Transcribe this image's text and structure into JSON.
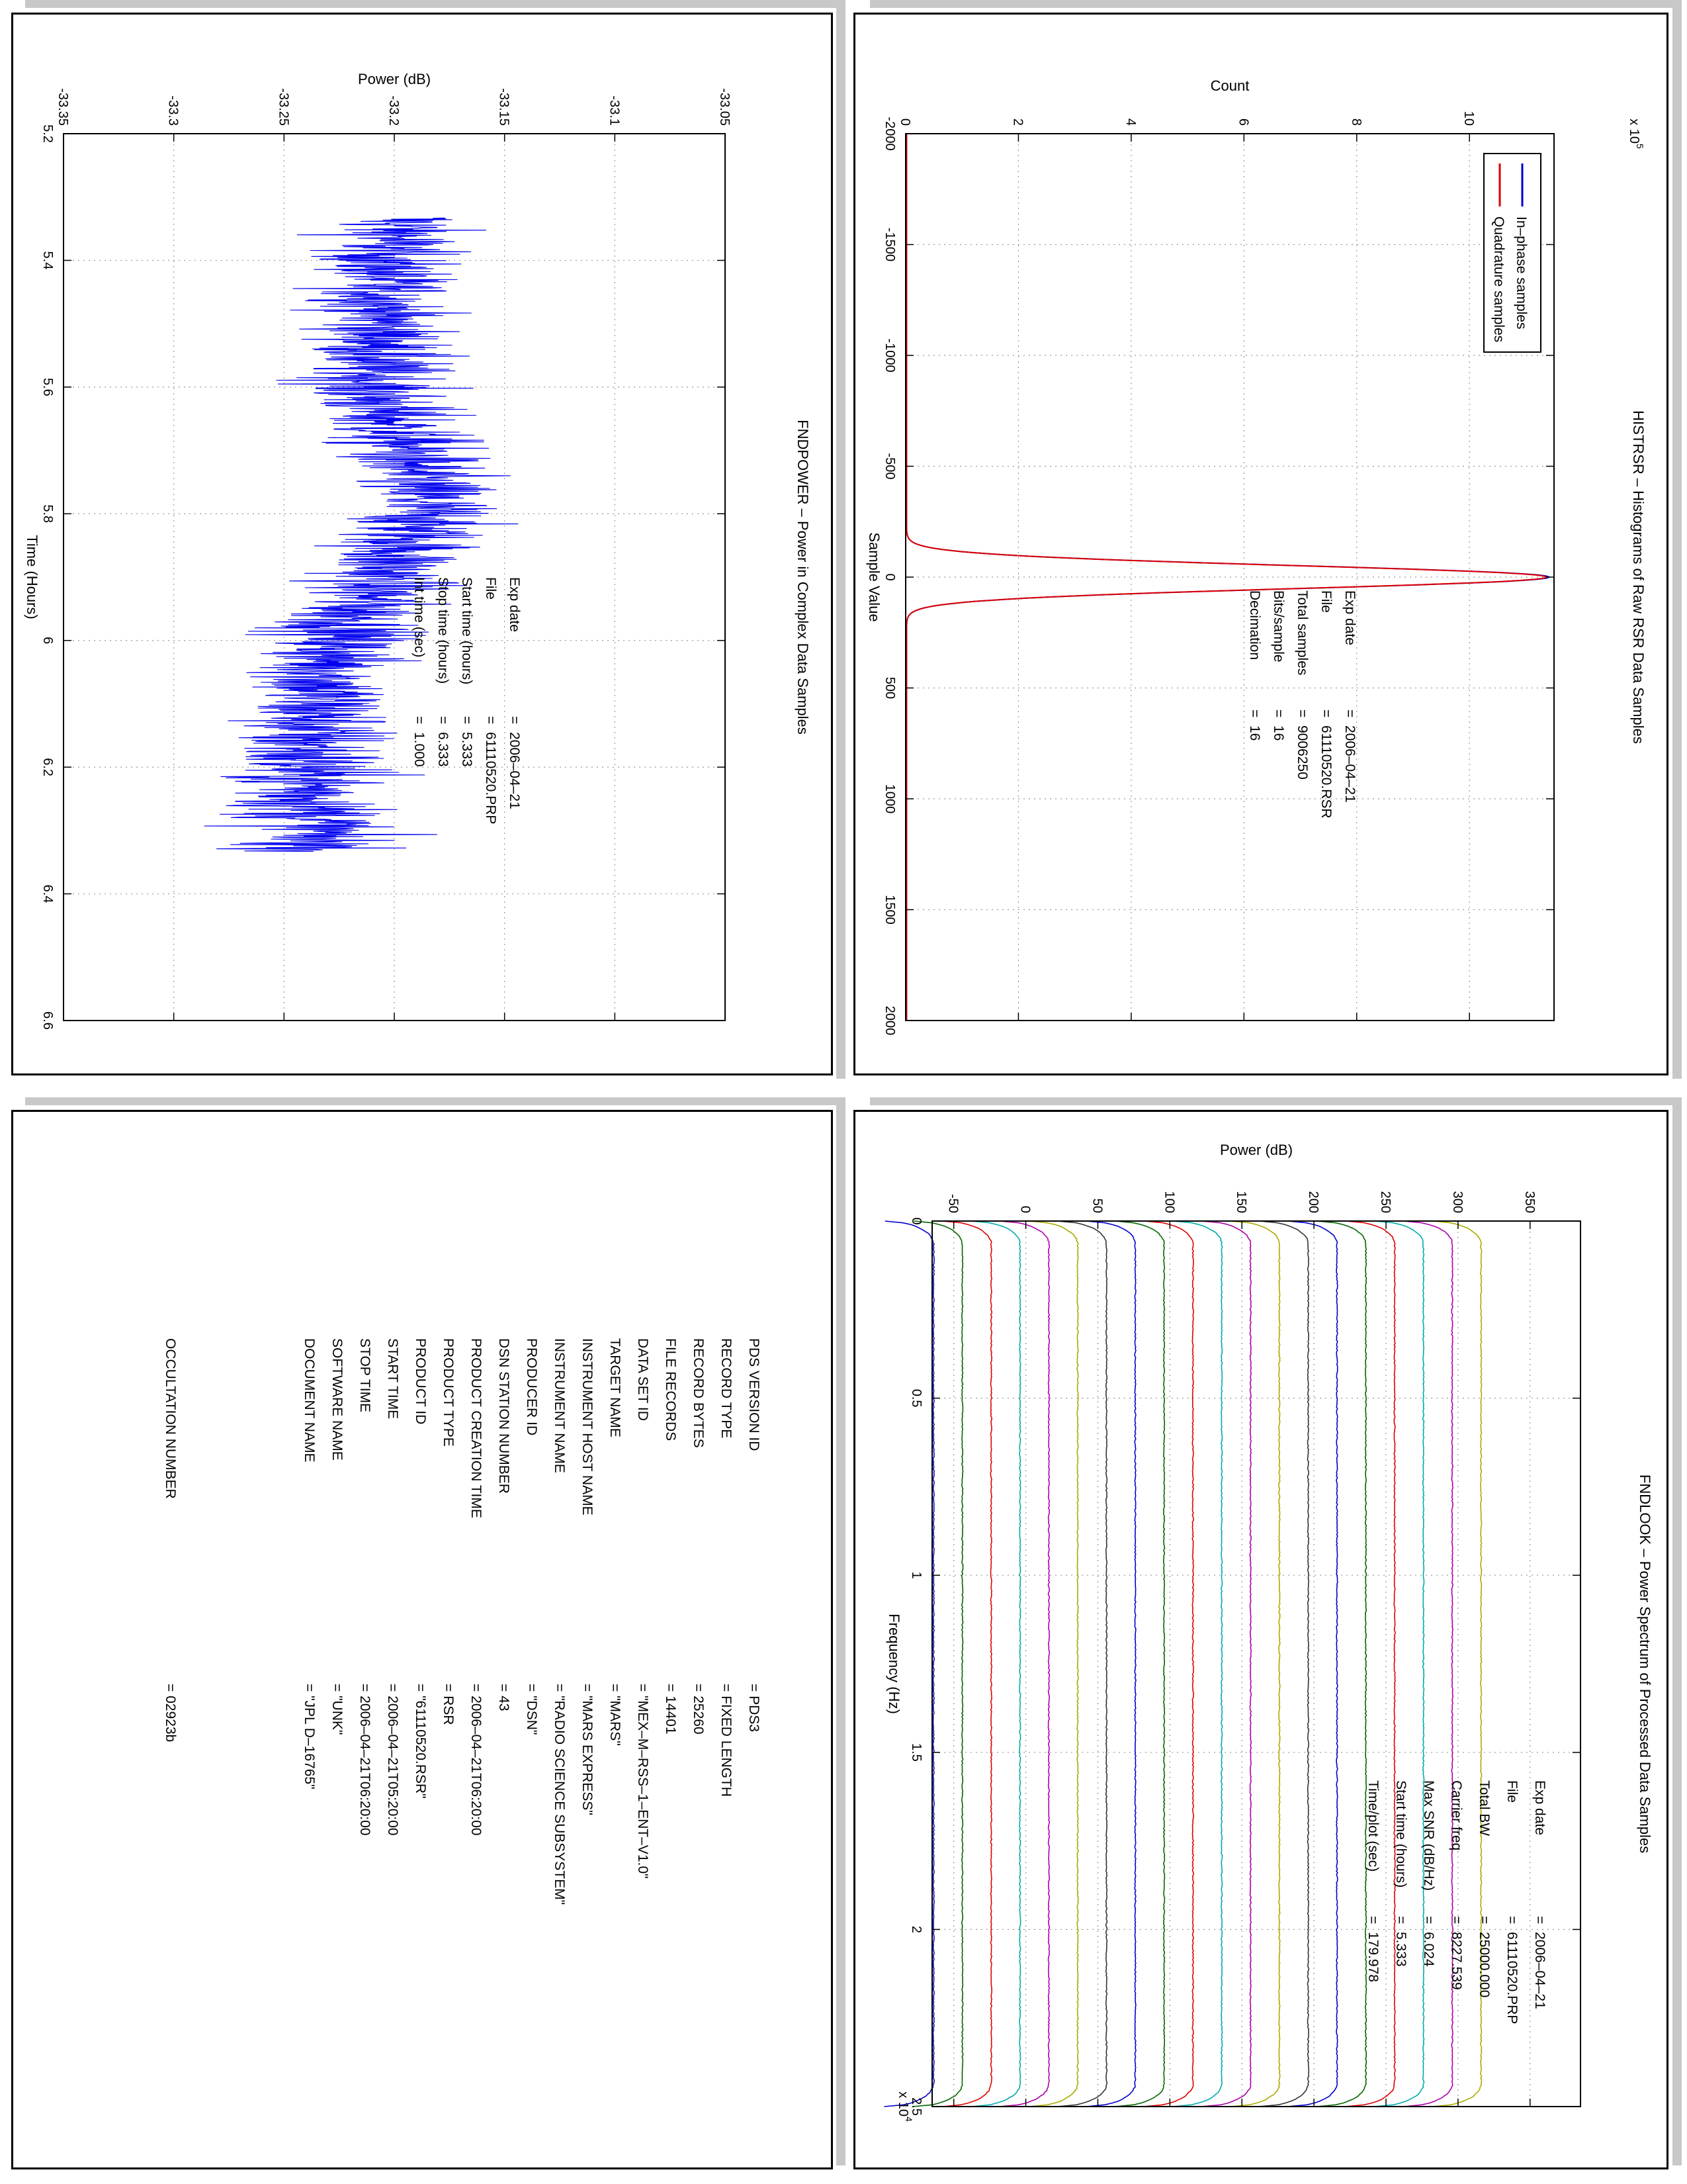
{
  "chart_data": [
    {
      "type": "line",
      "title": "FNDPOWER – Power in Complex Data Samples",
      "xlabel": "Time (Hours)",
      "ylabel": "Power (dB)",
      "xlim": [
        5.2,
        6.6
      ],
      "ylim": [
        -33.35,
        -33.05
      ],
      "xticks": [
        "5.2",
        "5.4",
        "5.6",
        "5.8",
        "6",
        "6.2",
        "6.4",
        "6.6"
      ],
      "yticks": [
        "-33.35",
        "-33.3",
        "-33.25",
        "-33.2",
        "-33.15",
        "-33.1",
        "-33.05"
      ],
      "grid": true,
      "series": [
        {
          "color": "#0000ee",
          "x": [
            5.333,
            5.4,
            5.5,
            5.6,
            5.7,
            5.8,
            5.9,
            6.0,
            6.1,
            6.2,
            6.3,
            6.333
          ],
          "values": [
            -33.195,
            -33.205,
            -33.205,
            -33.21,
            -33.195,
            -33.185,
            -33.205,
            -33.225,
            -33.235,
            -33.24,
            -33.235,
            -33.235
          ],
          "band": [
            0.06,
            0.055,
            0.055,
            0.06,
            0.06,
            0.06,
            0.06,
            0.06,
            0.065,
            0.07,
            0.065,
            0.06
          ]
        }
      ],
      "annotations": [
        {
          "label": "Exp date",
          "eq": "=",
          "value": "2006–04–21"
        },
        {
          "label": "File",
          "eq": "=",
          "value": "61110520.PRP"
        },
        {
          "label": "Start time (hours)",
          "eq": "=",
          "value": "5.333"
        },
        {
          "label": "Stop time (hours)",
          "eq": "=",
          "value": "6.333"
        },
        {
          "label": "Int time (sec)",
          "eq": "=",
          "value": "1.000"
        }
      ]
    },
    {
      "type": "line",
      "title": "HISTRSR – Histograms of Raw RSR Data Samples",
      "xlabel": "Sample Value",
      "ylabel": "Count",
      "xlim": [
        -2000,
        2000
      ],
      "ylim": [
        0,
        1150000
      ],
      "xticks": [
        "-2000",
        "-1500",
        "-1000",
        "-500",
        "0",
        "500",
        "1000",
        "1500",
        "2000"
      ],
      "yticks": [
        "0",
        "2",
        "4",
        "6",
        "8",
        "10"
      ],
      "ytick_values": [
        0,
        200000,
        400000,
        600000,
        800000,
        1000000
      ],
      "yscale_label": "x 10",
      "yscale_exp": "5",
      "grid": true,
      "legend_placement": "top-left",
      "series": [
        {
          "name": "In–phase samples",
          "color": "#0000cc",
          "peak": 1140000,
          "sigma": 22
        },
        {
          "name": "Quadrature samples",
          "color": "#dd0000",
          "peak": 1135000,
          "sigma": 22
        }
      ],
      "annotations": [
        {
          "label": "Exp date",
          "eq": "=",
          "value": "2006–04–21"
        },
        {
          "label": "File",
          "eq": "=",
          "value": "61110520.RSR"
        },
        {
          "label": "Total samples",
          "eq": "=",
          "value": "9006250"
        },
        {
          "label": "Bits/sample",
          "eq": "=",
          "value": "16"
        },
        {
          "label": "Decimation",
          "eq": "=",
          "value": "16"
        }
      ]
    },
    {
      "type": "line",
      "title": "FNDLOOK – Power Spectrum of Processed Data Samples",
      "xlabel": "Frequency (Hz)",
      "ylabel": "Power (dB)",
      "xlim": [
        0,
        25000
      ],
      "ylim": [
        -65,
        385
      ],
      "xticks": [
        "0",
        "0.5",
        "1",
        "1.5",
        "2",
        "2.5"
      ],
      "xtick_values": [
        0,
        5000,
        10000,
        15000,
        20000,
        25000
      ],
      "xscale_label": "x 10",
      "xscale_exp": "4",
      "yticks": [
        "-50",
        "0",
        "50",
        "100",
        "150",
        "200",
        "250",
        "300",
        "350"
      ],
      "ytick_values": [
        -50,
        0,
        50,
        100,
        150,
        200,
        250,
        300,
        350
      ],
      "grid": true,
      "series": [
        {
          "color": "#0000cc",
          "level": -64
        },
        {
          "color": "#006600",
          "level": -44
        },
        {
          "color": "#dd0000",
          "level": -24
        },
        {
          "color": "#00aaaa",
          "level": -4
        },
        {
          "color": "#aa00aa",
          "level": 16
        },
        {
          "color": "#aaaa00",
          "level": 36
        },
        {
          "color": "#333333",
          "level": 56
        },
        {
          "color": "#0000cc",
          "level": 76
        },
        {
          "color": "#006600",
          "level": 96
        },
        {
          "color": "#dd0000",
          "level": 116
        },
        {
          "color": "#00aaaa",
          "level": 136
        },
        {
          "color": "#aa00aa",
          "level": 156
        },
        {
          "color": "#aaaa00",
          "level": 176
        },
        {
          "color": "#333333",
          "level": 196
        },
        {
          "color": "#0000cc",
          "level": 216
        },
        {
          "color": "#006600",
          "level": 236
        },
        {
          "color": "#dd0000",
          "level": 256
        },
        {
          "color": "#00aaaa",
          "level": 276
        },
        {
          "color": "#aa00aa",
          "level": 296
        },
        {
          "color": "#aaaa00",
          "level": 316
        }
      ],
      "annotations": [
        {
          "label": "Exp date",
          "eq": "=",
          "value": "2006–04–21"
        },
        {
          "label": "File",
          "eq": "=",
          "value": "61110520.PRP"
        },
        {
          "label": "Total BW",
          "eq": "=",
          "value": "25000.000"
        },
        {
          "label": "Carrier freq",
          "eq": "=",
          "value": "8227.539"
        },
        {
          "label": "Max SNR (dB/Hz)",
          "eq": "=",
          "value": "6.024"
        },
        {
          "label": "Start time (hours)",
          "eq": "=",
          "value": "5.333"
        },
        {
          "label": "Time/plot (sec)",
          "eq": "=",
          "value": "179.978"
        }
      ]
    }
  ],
  "label_page": {
    "rows": [
      {
        "key": "PDS VERSION ID",
        "value": "= PDS3"
      },
      {
        "key": "RECORD TYPE",
        "value": "= FIXED LENGTH"
      },
      {
        "key": "RECORD BYTES",
        "value": "= 25260"
      },
      {
        "key": "FILE RECORDS",
        "value": "= 14401"
      },
      {
        "key": "DATA SET ID",
        "value": "= \"MEX–M–RSS–1–ENT–V1.0\""
      },
      {
        "key": "TARGET NAME",
        "value": "= \"MARS\""
      },
      {
        "key": "INSTRUMENT HOST NAME",
        "value": "= \"MARS EXPRESS\""
      },
      {
        "key": "INSTRUMENT NAME",
        "value": "= \"RADIO SCIENCE SUBSYSTEM\""
      },
      {
        "key": "PRODUCER ID",
        "value": "= \"DSN\""
      },
      {
        "key": "DSN STATION NUMBER",
        "value": "= 43"
      },
      {
        "key": "PRODUCT CREATION TIME",
        "value": "= 2006–04–21T06:20:00"
      },
      {
        "key": "PRODUCT TYPE",
        "value": "= RSR"
      },
      {
        "key": "PRODUCT ID",
        "value": "= \"61110520.RSR\""
      },
      {
        "key": "START TIME",
        "value": "= 2006–04–21T05:20:00"
      },
      {
        "key": "STOP TIME",
        "value": "= 2006–04–21T06:20:00"
      },
      {
        "key": "SOFTWARE NAME",
        "value": "= \"UNK\""
      },
      {
        "key": "DOCUMENT NAME",
        "value": "= \"JPL D–16765\""
      }
    ],
    "occultation": {
      "key": "OCCULTATION NUMBER",
      "value": "= 02923b"
    }
  }
}
